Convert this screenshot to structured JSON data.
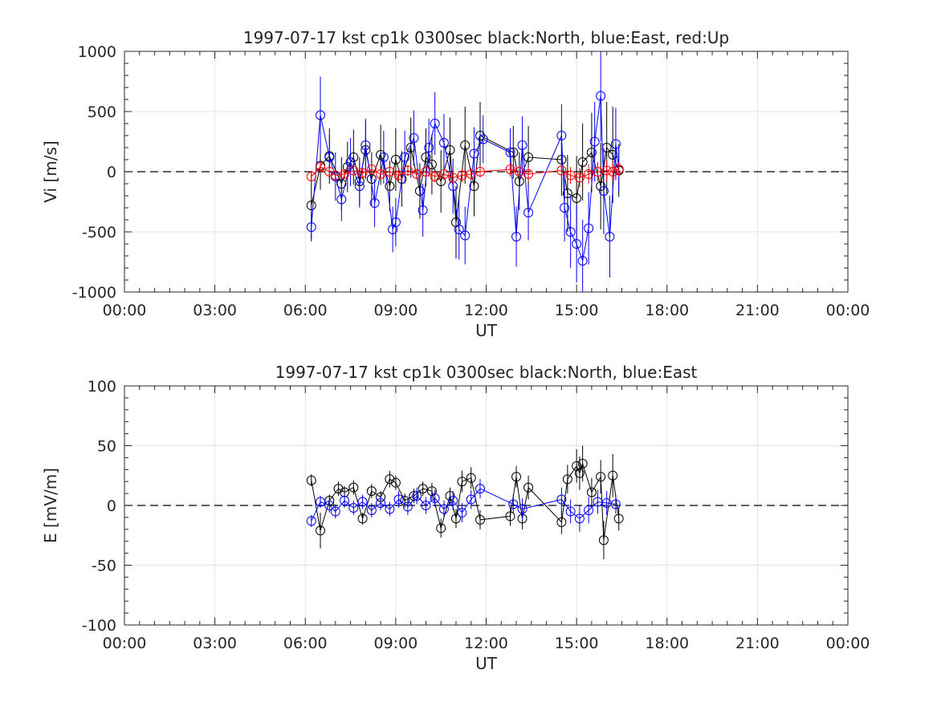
{
  "chart_data": [
    {
      "type": "scatter",
      "title": "1997-07-17 kst cp1k 0300sec black:North, blue:East, red:Up",
      "xlabel": "UT",
      "ylabel": "Vi [m/s]",
      "xlim": [
        0,
        24
      ],
      "ylim": [
        -1000,
        1000
      ],
      "xticks": [
        "00:00",
        "03:00",
        "06:00",
        "09:00",
        "12:00",
        "15:00",
        "18:00",
        "21:00",
        "00:00"
      ],
      "yticks": [
        "-1000",
        "-500",
        "0",
        "500",
        "1000"
      ],
      "grid": true,
      "zero_line": true,
      "series": [
        {
          "name": "North",
          "color": "#000000",
          "x": [
            6.2,
            6.5,
            6.8,
            7.2,
            7.4,
            7.6,
            7.8,
            8.0,
            8.2,
            8.5,
            8.8,
            9.0,
            9.2,
            9.5,
            9.8,
            10.0,
            10.2,
            10.5,
            10.8,
            11.0,
            11.3,
            11.6,
            11.8,
            12.9,
            13.1,
            13.4,
            14.5,
            14.7,
            15.0,
            15.2,
            15.5,
            15.8,
            16.0,
            16.2,
            16.4
          ],
          "y": [
            -280,
            50,
            130,
            -100,
            40,
            120,
            -80,
            180,
            -60,
            140,
            -120,
            100,
            -60,
            200,
            -160,
            120,
            60,
            -80,
            180,
            -420,
            220,
            -120,
            300,
            160,
            -80,
            120,
            100,
            -180,
            -220,
            80,
            160,
            -120,
            200,
            140,
            10
          ],
          "err": [
            280,
            200,
            230,
            220,
            210,
            230,
            200,
            240,
            220,
            250,
            210,
            260,
            230,
            250,
            230,
            240,
            250,
            260,
            270,
            300,
            320,
            250,
            280,
            220,
            240,
            260,
            300,
            320,
            350,
            320,
            330,
            360,
            380,
            400,
            220
          ]
        },
        {
          "name": "East",
          "color": "#0000ff",
          "x": [
            6.2,
            6.5,
            6.8,
            7.0,
            7.2,
            7.5,
            7.8,
            8.0,
            8.3,
            8.6,
            8.9,
            9.0,
            9.3,
            9.6,
            9.9,
            10.1,
            10.3,
            10.6,
            10.9,
            11.1,
            11.3,
            11.6,
            11.9,
            12.8,
            13.0,
            13.2,
            13.4,
            14.5,
            14.6,
            14.8,
            15.0,
            15.2,
            15.4,
            15.6,
            15.8,
            15.9,
            16.1,
            16.3,
            16.4
          ],
          "y": [
            -460,
            470,
            120,
            -40,
            -230,
            80,
            -120,
            220,
            -260,
            120,
            -480,
            -420,
            120,
            280,
            -320,
            200,
            400,
            240,
            -120,
            -480,
            -530,
            150,
            270,
            160,
            -540,
            220,
            -340,
            300,
            -300,
            -500,
            -600,
            -740,
            -470,
            250,
            630,
            -160,
            -540,
            230,
            20
          ],
          "err": [
            120,
            320,
            180,
            200,
            180,
            200,
            180,
            220,
            200,
            220,
            190,
            200,
            220,
            230,
            220,
            240,
            260,
            240,
            230,
            250,
            240,
            220,
            200,
            200,
            250,
            240,
            230,
            260,
            280,
            300,
            320,
            340,
            300,
            330,
            380,
            360,
            340,
            300,
            180
          ]
        },
        {
          "name": "Up",
          "color": "#ff0000",
          "x": [
            6.2,
            6.5,
            6.8,
            7.0,
            7.3,
            7.6,
            7.9,
            8.2,
            8.5,
            8.8,
            9.1,
            9.4,
            9.7,
            10.0,
            10.3,
            10.6,
            10.9,
            11.2,
            11.5,
            11.8,
            12.8,
            13.1,
            13.4,
            14.5,
            14.8,
            15.1,
            15.4,
            15.7,
            16.0,
            16.2,
            16.4
          ],
          "y": [
            -40,
            40,
            0,
            -30,
            -20,
            10,
            -10,
            20,
            -20,
            0,
            -30,
            10,
            -20,
            0,
            -40,
            -20,
            -50,
            -30,
            -20,
            0,
            20,
            0,
            -20,
            10,
            -30,
            -50,
            -20,
            0,
            10,
            0,
            20
          ],
          "err": [
            30,
            40,
            40,
            40,
            40,
            45,
            40,
            45,
            45,
            45,
            45,
            45,
            45,
            45,
            50,
            50,
            55,
            55,
            50,
            45,
            50,
            55,
            60,
            60,
            70,
            80,
            80,
            80,
            90,
            80,
            60
          ]
        }
      ]
    },
    {
      "type": "scatter",
      "title": "1997-07-17 kst cp1k 0300sec black:North, blue:East",
      "xlabel": "UT",
      "ylabel": "E [mV/m]",
      "xlim": [
        0,
        24
      ],
      "ylim": [
        -100,
        100
      ],
      "xticks": [
        "00:00",
        "03:00",
        "06:00",
        "09:00",
        "12:00",
        "15:00",
        "18:00",
        "21:00",
        "00:00"
      ],
      "yticks": [
        "-100",
        "-50",
        "0",
        "50",
        "100"
      ],
      "grid": true,
      "zero_line": true,
      "series": [
        {
          "name": "North",
          "color": "#000000",
          "x": [
            6.2,
            6.5,
            6.8,
            7.1,
            7.3,
            7.6,
            7.9,
            8.2,
            8.5,
            8.8,
            9.0,
            9.3,
            9.6,
            9.9,
            10.2,
            10.5,
            10.8,
            11.0,
            11.2,
            11.5,
            11.8,
            12.8,
            13.0,
            13.2,
            13.4,
            14.5,
            14.7,
            15.0,
            15.1,
            15.2,
            15.5,
            15.8,
            15.9,
            16.2,
            16.4
          ],
          "y": [
            21,
            -21,
            4,
            14,
            11,
            15,
            -11,
            12,
            7,
            22,
            19,
            4,
            8,
            14,
            12,
            -19,
            8,
            -11,
            20,
            23,
            -12,
            -9,
            24,
            -11,
            15,
            -14,
            22,
            33,
            27,
            35,
            11,
            24,
            -29,
            25,
            -11
          ],
          "err": [
            5,
            15,
            5,
            6,
            5,
            6,
            5,
            6,
            5,
            7,
            6,
            6,
            6,
            6,
            7,
            8,
            7,
            8,
            9,
            9,
            8,
            8,
            9,
            9,
            10,
            10,
            12,
            14,
            14,
            15,
            12,
            14,
            16,
            18,
            10
          ]
        },
        {
          "name": "East",
          "color": "#0000ff",
          "x": [
            6.2,
            6.5,
            6.8,
            7.0,
            7.3,
            7.6,
            7.9,
            8.2,
            8.5,
            8.8,
            9.1,
            9.4,
            9.7,
            10.0,
            10.3,
            10.6,
            10.9,
            11.2,
            11.5,
            11.8,
            12.9,
            13.2,
            14.5,
            14.8,
            15.1,
            15.4,
            15.7,
            16.0,
            16.3
          ],
          "y": [
            -13,
            3,
            0,
            -5,
            4,
            -2,
            3,
            -4,
            2,
            -3,
            5,
            -1,
            8,
            0,
            6,
            -3,
            4,
            -6,
            5,
            14,
            1,
            -3,
            5,
            -5,
            -11,
            -4,
            3,
            2,
            1
          ],
          "err": [
            5,
            5,
            6,
            6,
            6,
            6,
            6,
            6,
            6,
            6,
            7,
            7,
            7,
            7,
            7,
            7,
            8,
            8,
            8,
            8,
            8,
            9,
            10,
            10,
            11,
            11,
            10,
            10,
            8
          ]
        }
      ]
    }
  ]
}
